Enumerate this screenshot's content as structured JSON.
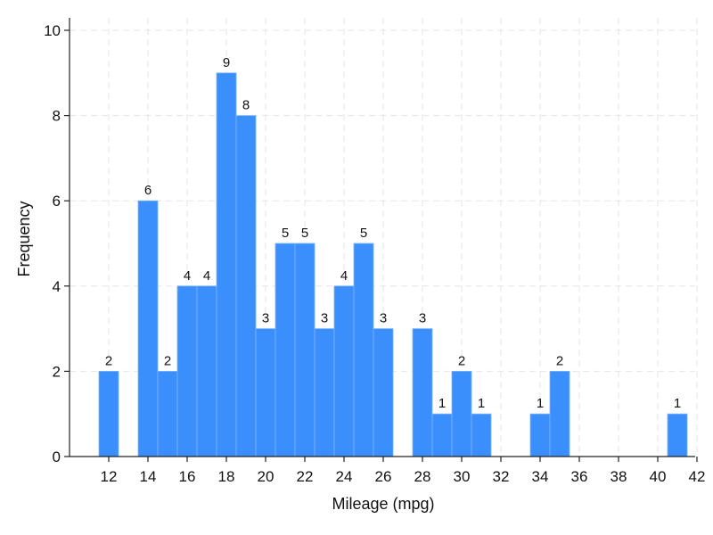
{
  "chart_data": {
    "type": "bar",
    "title": "",
    "xlabel": "Mileage (mpg)",
    "ylabel": "Frequency",
    "xlim": [
      11,
      42
    ],
    "ylim": [
      0,
      10
    ],
    "xticks": [
      12,
      14,
      16,
      18,
      20,
      22,
      24,
      26,
      28,
      30,
      32,
      34,
      36,
      38,
      40,
      42
    ],
    "yticks": [
      0,
      2,
      4,
      6,
      8,
      10
    ],
    "bin_width": 1,
    "bins": [
      {
        "x": 12,
        "value": 2
      },
      {
        "x": 14,
        "value": 6
      },
      {
        "x": 15,
        "value": 2
      },
      {
        "x": 16,
        "value": 4
      },
      {
        "x": 17,
        "value": 4
      },
      {
        "x": 18,
        "value": 9
      },
      {
        "x": 19,
        "value": 8
      },
      {
        "x": 20,
        "value": 3
      },
      {
        "x": 21,
        "value": 5
      },
      {
        "x": 22,
        "value": 5
      },
      {
        "x": 23,
        "value": 3
      },
      {
        "x": 24,
        "value": 4
      },
      {
        "x": 25,
        "value": 5
      },
      {
        "x": 26,
        "value": 3
      },
      {
        "x": 28,
        "value": 3
      },
      {
        "x": 29,
        "value": 1
      },
      {
        "x": 30,
        "value": 2
      },
      {
        "x": 31,
        "value": 1
      },
      {
        "x": 34,
        "value": 1
      },
      {
        "x": 35,
        "value": 2
      },
      {
        "x": 41,
        "value": 1
      }
    ],
    "bar_color": "#3a8ffc",
    "grid": true
  }
}
